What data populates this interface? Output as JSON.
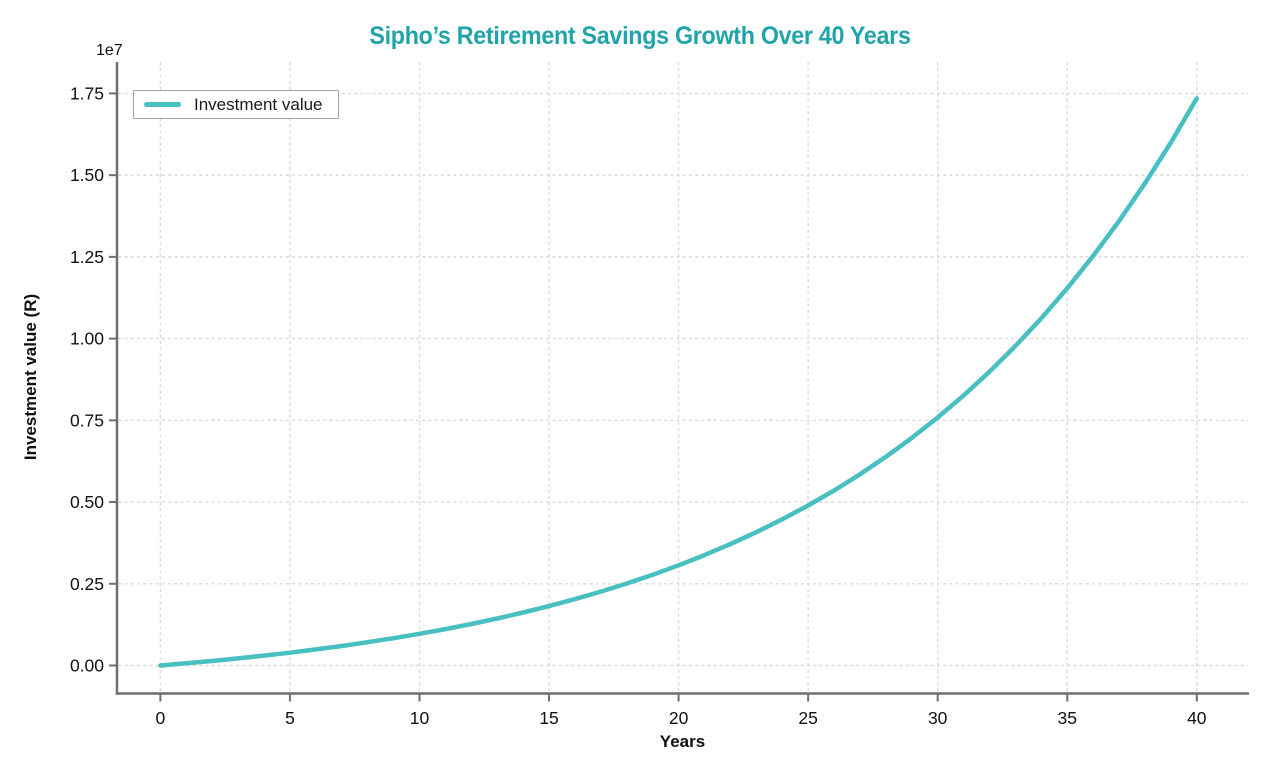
{
  "title": {
    "text": "Sipho’s Retirement Savings Growth Over 40 Years"
  },
  "legend": {
    "items": [
      {
        "label": "Investment value"
      }
    ]
  },
  "axes": {
    "x": {
      "label": "Years",
      "tick_labels": [
        "0",
        "5",
        "10",
        "15",
        "20",
        "25",
        "30",
        "35",
        "40"
      ]
    },
    "y": {
      "label": "Investment value (R)",
      "offset_text": "1e7",
      "tick_labels": [
        "0.00",
        "0.25",
        "0.50",
        "0.75",
        "1.00",
        "1.25",
        "1.50",
        "1.75"
      ]
    }
  },
  "style": {
    "title_color": "#21a3ab",
    "line_color": "#48bfc0",
    "grid_color": "#dadada",
    "spine_color": "#6f6f6f",
    "tick_label_color": "#111111",
    "legend_border_color": "#a3a3a3"
  },
  "chart_data": {
    "type": "line",
    "title": "Sipho’s Retirement Savings Growth Over 40 Years",
    "xlabel": "Years",
    "ylabel": "Investment value (R)",
    "x_ticks": [
      0,
      5,
      10,
      15,
      20,
      25,
      30,
      35,
      40
    ],
    "y_ticks": [
      0,
      2500000,
      5000000,
      7500000,
      10000000,
      12500000,
      15000000,
      17500000
    ],
    "y_offset_multiplier": "1e7",
    "xlim": [
      0,
      40
    ],
    "ylim": [
      -870000,
      18350000
    ],
    "grid": true,
    "legend_position": "upper left",
    "series": [
      {
        "name": "Investment value",
        "x": [
          0,
          1,
          2,
          3,
          4,
          5,
          6,
          7,
          8,
          9,
          10,
          11,
          12,
          13,
          14,
          15,
          16,
          17,
          18,
          19,
          20,
          21,
          22,
          23,
          24,
          25,
          26,
          27,
          28,
          29,
          30,
          31,
          32,
          33,
          34,
          35,
          36,
          37,
          38,
          39,
          40
        ],
        "y": [
          0,
          67000,
          139000,
          217000,
          302000,
          393000,
          491000,
          597000,
          712000,
          836000,
          970000,
          1115000,
          1271000,
          1439000,
          1621000,
          1818000,
          2031000,
          2260000,
          2508000,
          2775000,
          3064000,
          3376000,
          3713000,
          4077000,
          4471000,
          4895000,
          5354000,
          5849000,
          6384000,
          6962000,
          7585000,
          8259000,
          8987000,
          9773000,
          10622000,
          11538000,
          12529000,
          13598000,
          14753000,
          16000000,
          17347000
        ]
      }
    ]
  }
}
